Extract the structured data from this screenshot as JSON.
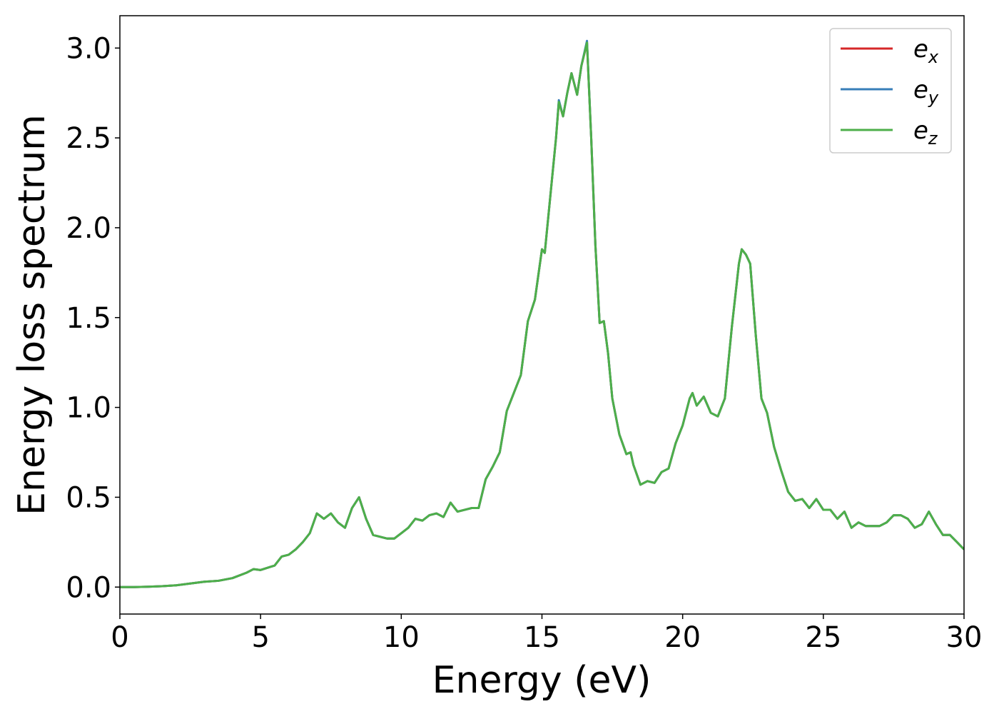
{
  "chart_data": {
    "type": "line",
    "xlabel": "Energy (eV)",
    "ylabel": "Energy loss spectrum",
    "x": [
      0,
      0.5,
      1,
      1.5,
      2,
      2.5,
      3,
      3.5,
      4,
      4.5,
      4.75,
      5,
      5.5,
      5.75,
      6,
      6.25,
      6.5,
      6.75,
      7,
      7.25,
      7.5,
      7.75,
      8,
      8.25,
      8.5,
      8.75,
      9,
      9.25,
      9.5,
      9.75,
      10,
      10.25,
      10.5,
      10.75,
      11,
      11.25,
      11.5,
      11.75,
      12,
      12.25,
      12.5,
      12.75,
      13,
      13.25,
      13.5,
      13.75,
      14,
      14.25,
      14.5,
      14.75,
      15,
      15.1,
      15.25,
      15.5,
      15.6,
      15.75,
      15.9,
      16.05,
      16.25,
      16.4,
      16.6,
      16.75,
      16.9,
      17.05,
      17.2,
      17.35,
      17.5,
      17.75,
      18,
      18.15,
      18.25,
      18.5,
      18.75,
      19,
      19.25,
      19.5,
      19.75,
      20,
      20.25,
      20.35,
      20.5,
      20.75,
      21,
      21.25,
      21.5,
      21.75,
      22,
      22.1,
      22.25,
      22.4,
      22.6,
      22.8,
      23,
      23.25,
      23.5,
      23.75,
      24,
      24.25,
      24.5,
      24.75,
      25,
      25.25,
      25.5,
      25.75,
      26,
      26.25,
      26.5,
      26.75,
      27,
      27.25,
      27.5,
      27.75,
      28,
      28.25,
      28.5,
      28.75,
      29,
      29.25,
      29.5,
      29.75,
      30
    ],
    "series": [
      {
        "name": "ex",
        "color": "#d62728",
        "values": [
          0,
          0,
          0.002,
          0.005,
          0.01,
          0.02,
          0.03,
          0.035,
          0.05,
          0.08,
          0.1,
          0.095,
          0.12,
          0.17,
          0.18,
          0.21,
          0.25,
          0.3,
          0.41,
          0.38,
          0.41,
          0.36,
          0.33,
          0.44,
          0.5,
          0.38,
          0.29,
          0.28,
          0.27,
          0.27,
          0.3,
          0.33,
          0.38,
          0.37,
          0.4,
          0.41,
          0.39,
          0.47,
          0.42,
          0.43,
          0.44,
          0.44,
          0.6,
          0.67,
          0.75,
          0.98,
          1.08,
          1.18,
          1.48,
          1.6,
          1.88,
          1.86,
          2.1,
          2.5,
          2.7,
          2.62,
          2.75,
          2.86,
          2.74,
          2.9,
          3.03,
          2.5,
          1.9,
          1.47,
          1.48,
          1.3,
          1.05,
          0.85,
          0.74,
          0.75,
          0.68,
          0.57,
          0.59,
          0.58,
          0.64,
          0.66,
          0.8,
          0.9,
          1.05,
          1.08,
          1.01,
          1.06,
          0.97,
          0.95,
          1.05,
          1.45,
          1.8,
          1.88,
          1.85,
          1.8,
          1.4,
          1.05,
          0.97,
          0.78,
          0.65,
          0.53,
          0.48,
          0.49,
          0.44,
          0.49,
          0.43,
          0.43,
          0.38,
          0.42,
          0.33,
          0.36,
          0.34,
          0.34,
          0.34,
          0.36,
          0.4,
          0.4,
          0.38,
          0.33,
          0.35,
          0.42,
          0.35,
          0.29,
          0.29,
          0.25,
          0.21
        ]
      },
      {
        "name": "ey",
        "color": "#377eb8",
        "values": [
          0,
          0,
          0.002,
          0.005,
          0.01,
          0.02,
          0.03,
          0.035,
          0.05,
          0.08,
          0.1,
          0.095,
          0.12,
          0.17,
          0.18,
          0.21,
          0.25,
          0.3,
          0.41,
          0.38,
          0.41,
          0.36,
          0.33,
          0.44,
          0.5,
          0.38,
          0.29,
          0.28,
          0.27,
          0.27,
          0.3,
          0.33,
          0.38,
          0.37,
          0.4,
          0.41,
          0.39,
          0.47,
          0.42,
          0.43,
          0.44,
          0.44,
          0.6,
          0.67,
          0.75,
          0.98,
          1.08,
          1.18,
          1.48,
          1.6,
          1.88,
          1.86,
          2.1,
          2.5,
          2.71,
          2.62,
          2.75,
          2.86,
          2.74,
          2.9,
          3.04,
          2.5,
          1.9,
          1.47,
          1.48,
          1.3,
          1.05,
          0.85,
          0.74,
          0.75,
          0.68,
          0.57,
          0.59,
          0.58,
          0.64,
          0.66,
          0.8,
          0.9,
          1.05,
          1.08,
          1.01,
          1.06,
          0.97,
          0.95,
          1.05,
          1.45,
          1.8,
          1.88,
          1.85,
          1.8,
          1.4,
          1.05,
          0.97,
          0.78,
          0.65,
          0.53,
          0.48,
          0.49,
          0.44,
          0.49,
          0.43,
          0.43,
          0.38,
          0.42,
          0.33,
          0.36,
          0.34,
          0.34,
          0.34,
          0.36,
          0.4,
          0.4,
          0.38,
          0.33,
          0.35,
          0.42,
          0.35,
          0.29,
          0.29,
          0.25,
          0.21
        ]
      },
      {
        "name": "ez",
        "color": "#4daf4a",
        "values": [
          0,
          0,
          0.002,
          0.005,
          0.01,
          0.02,
          0.03,
          0.035,
          0.05,
          0.08,
          0.1,
          0.095,
          0.12,
          0.17,
          0.18,
          0.21,
          0.25,
          0.3,
          0.41,
          0.38,
          0.41,
          0.36,
          0.33,
          0.44,
          0.5,
          0.38,
          0.29,
          0.28,
          0.27,
          0.27,
          0.3,
          0.33,
          0.38,
          0.37,
          0.4,
          0.41,
          0.39,
          0.47,
          0.42,
          0.43,
          0.44,
          0.44,
          0.6,
          0.67,
          0.75,
          0.98,
          1.08,
          1.18,
          1.48,
          1.6,
          1.88,
          1.86,
          2.1,
          2.5,
          2.7,
          2.62,
          2.75,
          2.86,
          2.74,
          2.9,
          3.03,
          2.5,
          1.9,
          1.47,
          1.48,
          1.3,
          1.05,
          0.85,
          0.74,
          0.75,
          0.68,
          0.57,
          0.59,
          0.58,
          0.64,
          0.66,
          0.8,
          0.9,
          1.05,
          1.08,
          1.01,
          1.06,
          0.97,
          0.95,
          1.05,
          1.45,
          1.8,
          1.88,
          1.85,
          1.8,
          1.4,
          1.05,
          0.97,
          0.78,
          0.65,
          0.53,
          0.48,
          0.49,
          0.44,
          0.49,
          0.43,
          0.43,
          0.38,
          0.42,
          0.33,
          0.36,
          0.34,
          0.34,
          0.34,
          0.36,
          0.4,
          0.4,
          0.38,
          0.33,
          0.35,
          0.42,
          0.35,
          0.29,
          0.29,
          0.25,
          0.21
        ]
      }
    ],
    "xlim": [
      0,
      30
    ],
    "xticks": [
      0,
      5,
      10,
      15,
      20,
      25,
      30
    ],
    "ylim": [
      -0.15,
      3.18
    ],
    "yticks": [
      {
        "value": 0,
        "label": "0.0"
      },
      0.5,
      {
        "value": 1,
        "label": "1.0"
      },
      1.5,
      {
        "value": 2,
        "label": "2.0"
      },
      2.5,
      {
        "value": 3,
        "label": "3.0"
      }
    ],
    "legend": "upper right",
    "grid": false
  }
}
